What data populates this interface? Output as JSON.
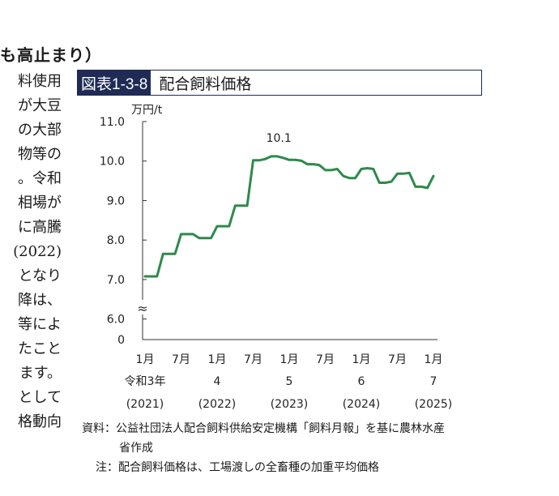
{
  "section_heading": "も高止まり）",
  "body_lines": [
    "料使用",
    "が大豆",
    "の大部",
    "物等の",
    "。令和",
    "相場が",
    "に高騰",
    "(2022)",
    "となり",
    "降は、",
    "等によ",
    "たこと",
    "ます。",
    "として",
    "格動向"
  ],
  "figure": {
    "number": "図表1-3-8",
    "title": "配合飼料価格"
  },
  "chart_data": {
    "type": "line",
    "ylabel": "万円/t",
    "y_ticks": [
      "11.0",
      "10.0",
      "9.0",
      "8.0",
      "7.0",
      "6.0",
      "0"
    ],
    "y_tick_values": [
      11.0,
      10.0,
      9.0,
      8.0,
      7.0,
      6.0,
      5.5
    ],
    "ylim": [
      5.5,
      11.0
    ],
    "axis_break": "≈",
    "x_month_labels": [
      "1月",
      "7月",
      "1月",
      "7月",
      "1月",
      "7月",
      "1月",
      "7月",
      "1月"
    ],
    "x_month_positions": [
      0,
      6,
      12,
      18,
      24,
      30,
      36,
      42,
      48
    ],
    "x_year_labels": [
      "令和3年",
      "4",
      "5",
      "6",
      "7"
    ],
    "x_year_western": [
      "(2021)",
      "(2022)",
      "(2023)",
      "(2024)",
      "(2025)"
    ],
    "x_year_positions": [
      0,
      12,
      24,
      36,
      48
    ],
    "annotation": {
      "text": "10.1",
      "x": 22
    },
    "line_color": "#2e8a4a",
    "series": [
      {
        "x": [
          0,
          2,
          3,
          5,
          6,
          8,
          9,
          11,
          12,
          14,
          15,
          17,
          18,
          19,
          20,
          21,
          22,
          23,
          24,
          25,
          26,
          27,
          28,
          29,
          30,
          31,
          32,
          33,
          34,
          35,
          36,
          37,
          38,
          39,
          40,
          41,
          42,
          43,
          44,
          45,
          46,
          47,
          48
        ],
        "values": [
          7.08,
          7.08,
          7.65,
          7.65,
          8.15,
          8.15,
          8.05,
          8.05,
          8.35,
          8.35,
          8.87,
          8.87,
          10.02,
          10.02,
          10.05,
          10.12,
          10.12,
          10.08,
          10.03,
          10.03,
          10.01,
          9.92,
          9.92,
          9.9,
          9.77,
          9.77,
          9.8,
          9.62,
          9.57,
          9.57,
          9.8,
          9.82,
          9.8,
          9.45,
          9.45,
          9.48,
          9.68,
          9.68,
          9.7,
          9.35,
          9.35,
          9.32,
          9.62
        ]
      }
    ]
  },
  "source_note": {
    "line1": "資料：公益社団法人配合飼料供給安定機構「飼料月報」を基に農林水産",
    "line2": "省作成",
    "line3": "注：配合飼料価格は、工場渡しの全畜種の加重平均価格"
  }
}
